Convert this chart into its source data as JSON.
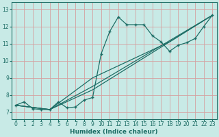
{
  "title": "",
  "xlabel": "Humidex (Indice chaleur)",
  "ylabel": "",
  "bg_color": "#c8eae6",
  "line_color": "#1e6e66",
  "grid_color": "#d4a0a0",
  "xlim": [
    -0.5,
    23.5
  ],
  "ylim": [
    6.6,
    13.4
  ],
  "xticks": [
    0,
    1,
    2,
    3,
    4,
    5,
    6,
    7,
    8,
    9,
    10,
    11,
    12,
    13,
    14,
    15,
    16,
    17,
    18,
    19,
    20,
    21,
    22,
    23
  ],
  "yticks": [
    7,
    8,
    9,
    10,
    11,
    12,
    13
  ],
  "line1_x": [
    0,
    1,
    2,
    3,
    4,
    5,
    6,
    7,
    8,
    9,
    10,
    11,
    12,
    13,
    14,
    15,
    16,
    17,
    18,
    19,
    20,
    21,
    22,
    23
  ],
  "line1_y": [
    7.4,
    7.6,
    7.2,
    7.15,
    7.15,
    7.6,
    7.25,
    7.3,
    7.7,
    7.85,
    10.4,
    11.7,
    12.55,
    12.1,
    12.1,
    12.1,
    11.45,
    11.1,
    10.55,
    10.9,
    11.05,
    11.3,
    12.0,
    12.65
  ],
  "line2_x": [
    0,
    4,
    9,
    23
  ],
  "line2_y": [
    7.4,
    7.15,
    8.3,
    12.65
  ],
  "line3_x": [
    0,
    4,
    9,
    23
  ],
  "line3_y": [
    7.4,
    7.15,
    8.5,
    12.65
  ],
  "line4_x": [
    0,
    4,
    9,
    18,
    23
  ],
  "line4_y": [
    7.4,
    7.15,
    9.0,
    11.1,
    12.65
  ]
}
